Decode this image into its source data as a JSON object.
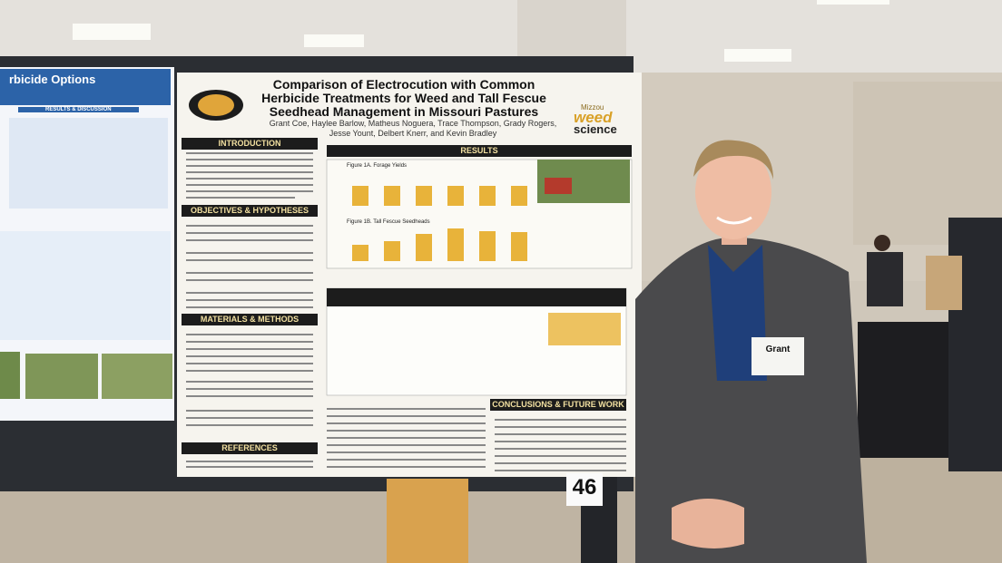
{
  "left_poster": {
    "title": "rbicide Options",
    "section": "RESULTS & DISCUSSION"
  },
  "poster": {
    "title": "Comparison of Electrocution with Common Herbicide Treatments for Weed and Tall Fescue Seedhead Management in Missouri Pastures",
    "authors": "Grant Coe, Haylee Barlow, Matheus Noguera, Trace Thompson, Grady Rogers, Jesse Yount, Delbert Knerr, and Kevin Bradley",
    "logo": {
      "top": "Mizzou",
      "middle": "weed",
      "bottom": "science"
    },
    "sections": {
      "introduction": "INTRODUCTION",
      "results": "RESULTS",
      "objectives": "OBJECTIVES & HYPOTHESES",
      "methods": "MATERIALS & METHODS",
      "references": "REFERENCES",
      "conclusions": "CONCLUSIONS & FUTURE WORK"
    },
    "figures": {
      "a": "Figure 1A. Forage Yields",
      "b": "Figure 1B. Tall Fescue Seedheads"
    }
  },
  "poster_number": "46",
  "name_badge": "Grant"
}
